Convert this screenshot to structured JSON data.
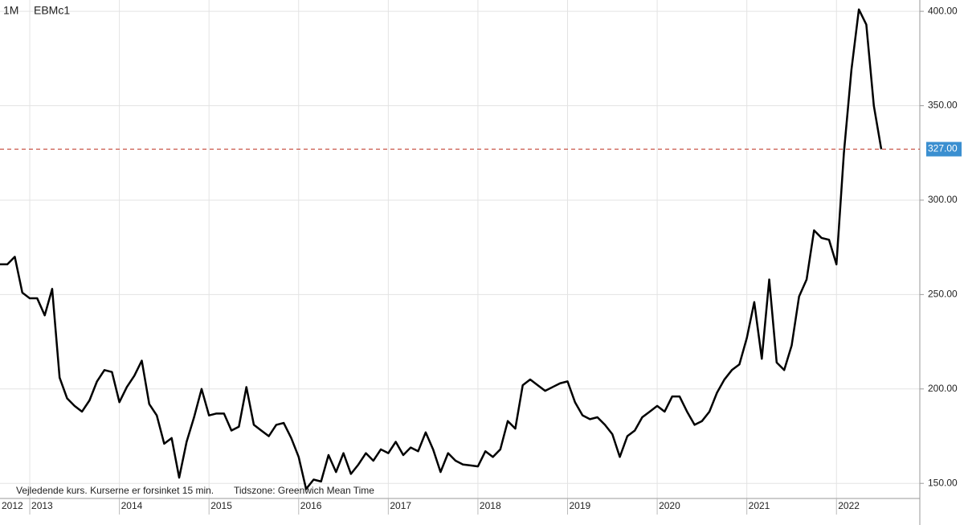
{
  "chart_data": {
    "type": "line",
    "period": "1M",
    "symbol": "EBMc1",
    "footnote": "Vejledende kurs. Kurserne er forsinket 15 min.",
    "timezone": "Tidszone: Greenwich Mean Time",
    "xlim": [
      2012.668,
      2022.93
    ],
    "xticks": [
      2012,
      2013,
      2014,
      2015,
      2016,
      2017,
      2018,
      2019,
      2020,
      2021,
      2022
    ],
    "ylim": [
      142,
      406
    ],
    "yticks": [
      {
        "value": 150,
        "label": "150.00"
      },
      {
        "value": 200,
        "label": "200.00"
      },
      {
        "value": 250,
        "label": "250.00"
      },
      {
        "value": 300,
        "label": "300.00"
      },
      {
        "value": 350,
        "label": "350.00"
      },
      {
        "value": 400,
        "label": "400.00"
      }
    ],
    "grid": true,
    "price_line": {
      "value": 327,
      "label": "327.00",
      "color": "#c0392b",
      "label_color": "#3b8fd0"
    },
    "series": [
      {
        "color": "#000000",
        "x": [
          2012.667,
          2012.75,
          2012.833,
          2012.917,
          2013.0,
          2013.083,
          2013.167,
          2013.25,
          2013.333,
          2013.417,
          2013.5,
          2013.583,
          2013.667,
          2013.75,
          2013.833,
          2013.917,
          2014.0,
          2014.083,
          2014.167,
          2014.25,
          2014.333,
          2014.417,
          2014.5,
          2014.583,
          2014.667,
          2014.75,
          2014.833,
          2014.917,
          2015.0,
          2015.083,
          2015.167,
          2015.25,
          2015.333,
          2015.417,
          2015.5,
          2015.583,
          2015.667,
          2015.75,
          2015.833,
          2015.917,
          2016.0,
          2016.083,
          2016.167,
          2016.25,
          2016.333,
          2016.417,
          2016.5,
          2016.583,
          2016.667,
          2016.75,
          2016.833,
          2016.917,
          2017.0,
          2017.083,
          2017.167,
          2017.25,
          2017.333,
          2017.417,
          2017.5,
          2017.583,
          2017.667,
          2017.75,
          2017.833,
          2017.917,
          2018.0,
          2018.083,
          2018.167,
          2018.25,
          2018.333,
          2018.417,
          2018.5,
          2018.583,
          2018.667,
          2018.75,
          2018.833,
          2018.917,
          2019.0,
          2019.083,
          2019.167,
          2019.25,
          2019.333,
          2019.417,
          2019.5,
          2019.583,
          2019.667,
          2019.75,
          2019.833,
          2019.917,
          2020.0,
          2020.083,
          2020.167,
          2020.25,
          2020.333,
          2020.417,
          2020.5,
          2020.583,
          2020.667,
          2020.75,
          2020.833,
          2020.917,
          2021.0,
          2021.083,
          2021.167,
          2021.25,
          2021.333,
          2021.417,
          2021.5,
          2021.583,
          2021.667,
          2021.75,
          2021.833,
          2021.917,
          2022.0,
          2022.083,
          2022.167,
          2022.25,
          2022.333,
          2022.417,
          2022.5
        ],
        "values": [
          266,
          266,
          270,
          251,
          248,
          248,
          239,
          253,
          206,
          195,
          191,
          188,
          194,
          204,
          210,
          209,
          193,
          201,
          207,
          215,
          192,
          186,
          171,
          174,
          153,
          172,
          185,
          200,
          186,
          187,
          187,
          178,
          180,
          201,
          181,
          178,
          175,
          181,
          182,
          174,
          164,
          147,
          152,
          151,
          165,
          156,
          166,
          155,
          160,
          166,
          162,
          168,
          166,
          172,
          165,
          169,
          167,
          177,
          168,
          156,
          166,
          162,
          160,
          159.5,
          159,
          167,
          164,
          168,
          183,
          179,
          202,
          205,
          202,
          199,
          201,
          203,
          204,
          193,
          186,
          184,
          185,
          181,
          176,
          164,
          175,
          178,
          185,
          188,
          191,
          188,
          196,
          196,
          188,
          181,
          183,
          188,
          198,
          205,
          210,
          213,
          227,
          246,
          216,
          258,
          214,
          210,
          223,
          249,
          258,
          284,
          280,
          279,
          266,
          325,
          369,
          401,
          393,
          350,
          327
        ]
      }
    ]
  }
}
